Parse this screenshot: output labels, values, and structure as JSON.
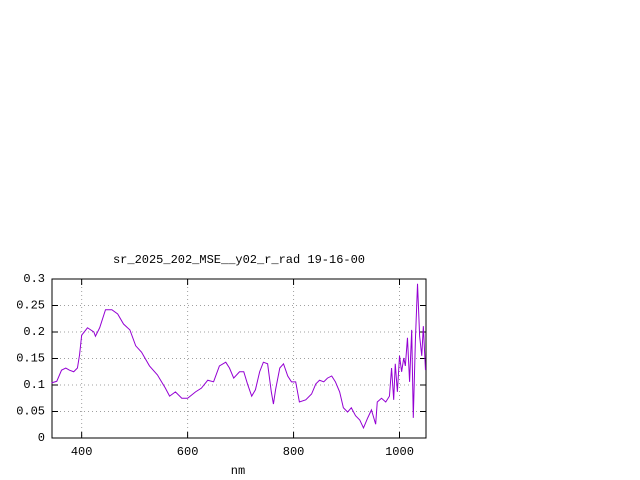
{
  "chart_data": {
    "type": "line",
    "title": "sr_2025_202_MSE__y02_r_rad 19-16-00",
    "x_label": "nm",
    "x": [
      343,
      353,
      362,
      370,
      377,
      385,
      392,
      396,
      400,
      411,
      423,
      426,
      434,
      445,
      457,
      468,
      479,
      491,
      502,
      513,
      528,
      543,
      558,
      566,
      577,
      589,
      600,
      615,
      626,
      638,
      649,
      660,
      672,
      679,
      687,
      698,
      706,
      713,
      721,
      728,
      736,
      743,
      751,
      758,
      762,
      766,
      774,
      781,
      789,
      796,
      804,
      811,
      823,
      834,
      842,
      849,
      857,
      864,
      872,
      879,
      887,
      894,
      902,
      909,
      917,
      925,
      932,
      940,
      947,
      955,
      958,
      966,
      974,
      981,
      985,
      989,
      992,
      996,
      1000,
      1004,
      1008,
      1011,
      1015,
      1019,
      1023,
      1026,
      1030,
      1034,
      1038,
      1042,
      1045,
      1049
    ],
    "series": [
      {
        "name": "sr_2025_202_MSE__y02_r_rad",
        "color": "#9400d3",
        "values": [
          0.104,
          0.107,
          0.128,
          0.132,
          0.128,
          0.125,
          0.132,
          0.157,
          0.194,
          0.208,
          0.2,
          0.192,
          0.208,
          0.242,
          0.242,
          0.234,
          0.215,
          0.204,
          0.174,
          0.162,
          0.136,
          0.119,
          0.094,
          0.079,
          0.087,
          0.075,
          0.075,
          0.087,
          0.094,
          0.109,
          0.106,
          0.136,
          0.143,
          0.132,
          0.113,
          0.125,
          0.125,
          0.102,
          0.079,
          0.091,
          0.125,
          0.143,
          0.14,
          0.087,
          0.064,
          0.091,
          0.132,
          0.14,
          0.117,
          0.106,
          0.106,
          0.068,
          0.072,
          0.083,
          0.102,
          0.109,
          0.106,
          0.113,
          0.117,
          0.106,
          0.087,
          0.057,
          0.049,
          0.057,
          0.042,
          0.034,
          0.019,
          0.038,
          0.053,
          0.026,
          0.068,
          0.075,
          0.068,
          0.079,
          0.132,
          0.072,
          0.14,
          0.087,
          0.155,
          0.125,
          0.151,
          0.136,
          0.189,
          0.106,
          0.204,
          0.038,
          0.185,
          0.291,
          0.192,
          0.155,
          0.211,
          0.128
        ]
      }
    ],
    "xlim": [
      344,
      1050
    ],
    "xticks": [
      400,
      600,
      800,
      1000
    ],
    "ylim": [
      0,
      0.3
    ],
    "yticks": [
      0,
      0.05,
      0.1,
      0.15,
      0.2,
      0.25,
      0.3
    ],
    "grid": true
  }
}
